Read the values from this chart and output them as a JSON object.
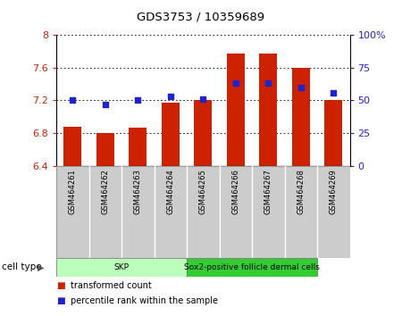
{
  "title": "GDS3753 / 10359689",
  "samples": [
    "GSM464261",
    "GSM464262",
    "GSM464263",
    "GSM464264",
    "GSM464265",
    "GSM464266",
    "GSM464267",
    "GSM464268",
    "GSM464269"
  ],
  "transformed_count": [
    6.88,
    6.8,
    6.87,
    7.17,
    7.2,
    7.77,
    7.77,
    7.6,
    7.2
  ],
  "percentile_rank": [
    50,
    47,
    50,
    53,
    51,
    63,
    63,
    60,
    56
  ],
  "ylim_left": [
    6.4,
    8.0
  ],
  "ylim_right": [
    0,
    100
  ],
  "yticks_left": [
    6.4,
    6.8,
    7.2,
    7.6,
    8.0
  ],
  "yticks_right": [
    0,
    25,
    50,
    75,
    100
  ],
  "ytick_labels_left": [
    "6.4",
    "6.8",
    "7.2",
    "7.6",
    "8"
  ],
  "ytick_labels_right": [
    "0",
    "25",
    "50",
    "75",
    "100%"
  ],
  "bar_color": "#cc2200",
  "dot_color": "#2222cc",
  "grid_color": "#000000",
  "cell_type_groups": [
    {
      "label": "SKP",
      "start": 0,
      "end": 4,
      "color": "#bbffbb"
    },
    {
      "label": "Sox2-positive follicle dermal cells",
      "start": 4,
      "end": 8,
      "color": "#33cc33"
    }
  ],
  "cell_type_label": "cell type",
  "legend_items": [
    {
      "label": "transformed count",
      "color": "#cc2200"
    },
    {
      "label": "percentile rank within the sample",
      "color": "#2222cc"
    }
  ],
  "bar_width": 0.55,
  "bg_color": "#ffffff",
  "plot_bg": "#ffffff",
  "tick_label_color_left": "#cc2200",
  "tick_label_color_right": "#2222cc",
  "label_box_color": "#cccccc",
  "label_box_border": "#999999"
}
